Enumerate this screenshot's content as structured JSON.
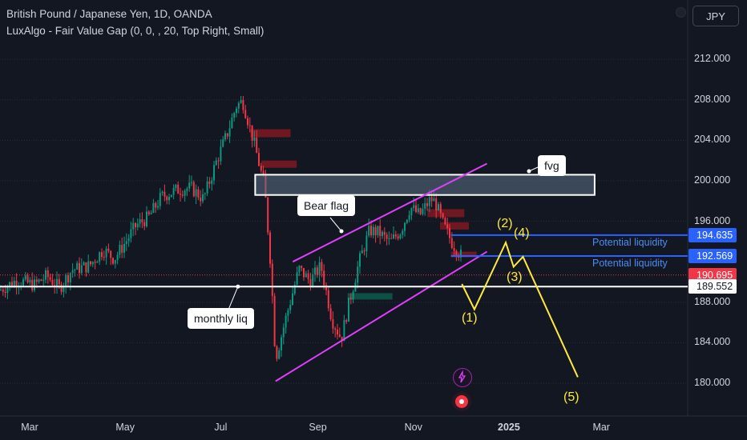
{
  "header": {
    "title": "British Pound / Japanese Yen, 1D, OANDA",
    "indicator": "LuxAlgo - Fair Value Gap (0, 0, , 20, Top Right, Small)",
    "currency_button": "JPY"
  },
  "colors": {
    "background": "#131722",
    "bull": "#089981",
    "bear": "#f23645",
    "trendline": "#e040fb",
    "wave": "#ffeb3b",
    "liquidity": "#2962ff",
    "fvg_bear": "#801922",
    "fvg_bull": "#0f5a4a"
  },
  "chart_data": {
    "type": "candlestick",
    "symbol": "GBPJPY",
    "interval": "1D",
    "ylim": [
      178.6,
      215.2
    ],
    "y_ticks": [
      "212.000",
      "208.000",
      "204.000",
      "200.000",
      "196.000",
      "188.000",
      "184.000",
      "180.000"
    ],
    "x_ticks": [
      {
        "label": "Mar",
        "date": "2024-03-01",
        "bold": false
      },
      {
        "label": "May",
        "date": "2024-05-01",
        "bold": false
      },
      {
        "label": "Jul",
        "date": "2024-07-01",
        "bold": false
      },
      {
        "label": "Sep",
        "date": "2024-09-01",
        "bold": false
      },
      {
        "label": "Nov",
        "date": "2024-11-01",
        "bold": false
      },
      {
        "label": "2025",
        "date": "2025-01-01",
        "bold": true
      },
      {
        "label": "Mar",
        "date": "2025-03-01",
        "bold": false
      }
    ],
    "price_path": [
      [
        "2024-02-12",
        189.3
      ],
      [
        "2024-02-22",
        190.2
      ],
      [
        "2024-03-04",
        189.7
      ],
      [
        "2024-03-12",
        190.6
      ],
      [
        "2024-03-20",
        189.4
      ],
      [
        "2024-03-28",
        191.2
      ],
      [
        "2024-04-08",
        191.6
      ],
      [
        "2024-04-17",
        193.2
      ],
      [
        "2024-04-24",
        192.3
      ],
      [
        "2024-05-01",
        193.9
      ],
      [
        "2024-05-08",
        195.6
      ],
      [
        "2024-05-16",
        196.4
      ],
      [
        "2024-05-24",
        198.4
      ],
      [
        "2024-06-03",
        199.1
      ],
      [
        "2024-06-12",
        199.3
      ],
      [
        "2024-06-20",
        198.2
      ],
      [
        "2024-06-28",
        201.8
      ],
      [
        "2024-07-05",
        204.6
      ],
      [
        "2024-07-11",
        207.4
      ],
      [
        "2024-07-15",
        207.9
      ],
      [
        "2024-07-22",
        203.9
      ],
      [
        "2024-07-29",
        199.4
      ],
      [
        "2024-08-02",
        191.5
      ],
      [
        "2024-08-05",
        182.4
      ],
      [
        "2024-08-12",
        186.7
      ],
      [
        "2024-08-20",
        191.3
      ],
      [
        "2024-08-27",
        190.1
      ],
      [
        "2024-09-03",
        191.6
      ],
      [
        "2024-09-10",
        186.3
      ],
      [
        "2024-09-16",
        184.4
      ],
      [
        "2024-09-20",
        187.3
      ],
      [
        "2024-09-27",
        191.8
      ],
      [
        "2024-10-04",
        195.1
      ],
      [
        "2024-10-10",
        194.9
      ],
      [
        "2024-10-17",
        193.9
      ],
      [
        "2024-10-24",
        195.1
      ],
      [
        "2024-10-30",
        197.4
      ],
      [
        "2024-11-05",
        196.6
      ],
      [
        "2024-11-12",
        198.2
      ],
      [
        "2024-11-15",
        197.9
      ],
      [
        "2024-11-20",
        195.7
      ],
      [
        "2024-11-26",
        193.8
      ],
      [
        "2024-12-02",
        192.5
      ],
      [
        "2024-12-05",
        191.2
      ]
    ],
    "price_lines": [
      {
        "value": 194.635,
        "label": "194.635",
        "bg": "#2962ff",
        "text": "Potential liquidity"
      },
      {
        "value": 192.569,
        "label": "192.569",
        "bg": "#2962ff",
        "text": "Potential liquidity"
      },
      {
        "value": 190.695,
        "label": "190.695",
        "bg": "#f23645",
        "text": ""
      },
      {
        "value": 189.552,
        "label": "189.552",
        "bg": "#ffffff",
        "text": ""
      }
    ],
    "fvg_zone": {
      "y_top": 200.6,
      "y_bottom": 198.6,
      "label": "fvg"
    },
    "annotations": {
      "bear_flag": "Bear flag",
      "monthly_liq": "monthly liq",
      "wave_labels": [
        "(1)",
        "(2)",
        "(3)",
        "(4)",
        "(5)"
      ]
    },
    "projection_path": [
      [
        "2024-12-02",
        189.8
      ],
      [
        "2024-12-10",
        187.3
      ],
      [
        "2024-12-30",
        193.9
      ],
      [
        "2025-01-04",
        191.5
      ],
      [
        "2025-01-10",
        192.5
      ],
      [
        "2025-02-14",
        180.6
      ]
    ]
  }
}
